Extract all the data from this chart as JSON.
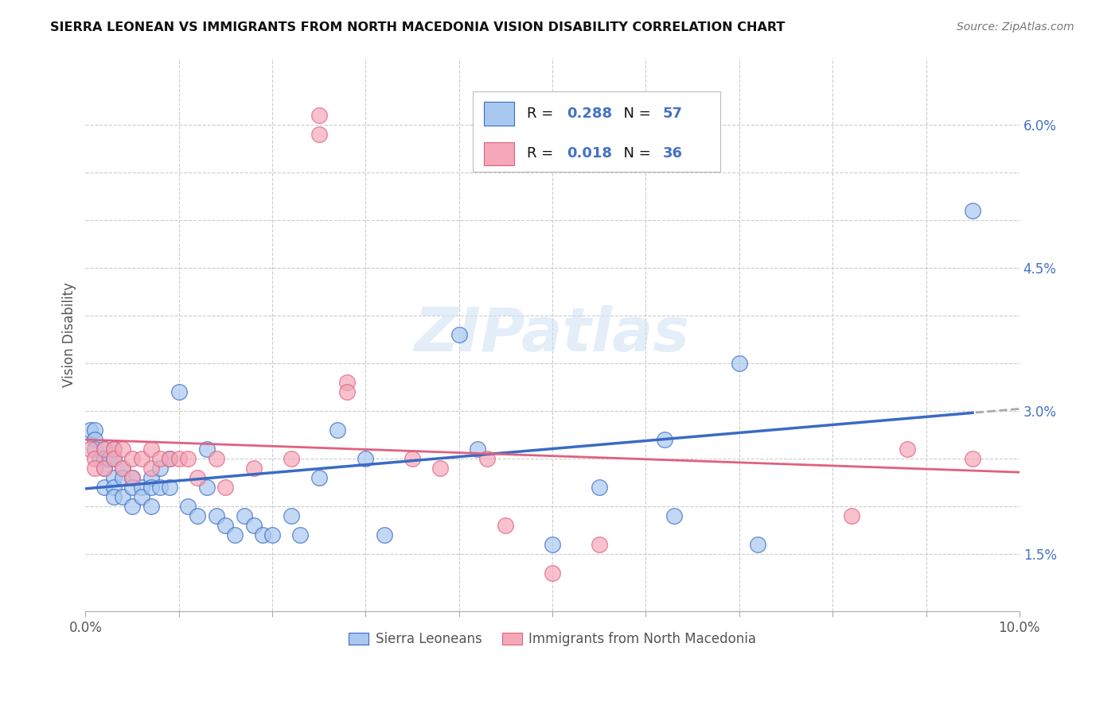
{
  "title": "SIERRA LEONEAN VS IMMIGRANTS FROM NORTH MACEDONIA VISION DISABILITY CORRELATION CHART",
  "source": "Source: ZipAtlas.com",
  "ylabel": "Vision Disability",
  "series1_label": "Sierra Leoneans",
  "series2_label": "Immigrants from North Macedonia",
  "R1": "0.288",
  "N1": "57",
  "R2": "0.018",
  "N2": "36",
  "color1": "#A8C8F0",
  "color2": "#F4A8B8",
  "trendline1_color": "#3A6BC4",
  "trendline2_color": "#E06080",
  "trendline_dash_color": "#AAAAAA",
  "background_color": "#FFFFFF",
  "grid_color": "#CCCCCC",
  "watermark": "ZIPatlas",
  "xlim": [
    0.0,
    0.1
  ],
  "ylim": [
    0.009,
    0.067
  ],
  "y_ticks_labeled": [
    0.015,
    0.03,
    0.045,
    0.06
  ],
  "y_tick_labels": [
    "1.5%",
    "3.0%",
    "4.5%",
    "6.0%"
  ],
  "y_grid_ticks": [
    0.015,
    0.02,
    0.025,
    0.03,
    0.035,
    0.04,
    0.045,
    0.05,
    0.055,
    0.06
  ],
  "x_grid_ticks": [
    0.01,
    0.02,
    0.03,
    0.04,
    0.05,
    0.06,
    0.07,
    0.08,
    0.09
  ],
  "series1_x": [
    0.0005,
    0.001,
    0.001,
    0.001,
    0.0015,
    0.002,
    0.002,
    0.002,
    0.002,
    0.0025,
    0.003,
    0.003,
    0.003,
    0.003,
    0.003,
    0.004,
    0.004,
    0.004,
    0.005,
    0.005,
    0.005,
    0.006,
    0.006,
    0.007,
    0.007,
    0.007,
    0.008,
    0.008,
    0.009,
    0.009,
    0.01,
    0.011,
    0.012,
    0.013,
    0.013,
    0.014,
    0.015,
    0.016,
    0.017,
    0.018,
    0.019,
    0.02,
    0.022,
    0.023,
    0.025,
    0.027,
    0.03,
    0.032,
    0.04,
    0.042,
    0.05,
    0.055,
    0.062,
    0.063,
    0.07,
    0.072,
    0.095
  ],
  "series1_y": [
    0.028,
    0.028,
    0.027,
    0.026,
    0.025,
    0.026,
    0.025,
    0.024,
    0.022,
    0.025,
    0.026,
    0.025,
    0.023,
    0.022,
    0.021,
    0.024,
    0.023,
    0.021,
    0.023,
    0.022,
    0.02,
    0.022,
    0.021,
    0.023,
    0.022,
    0.02,
    0.024,
    0.022,
    0.025,
    0.022,
    0.032,
    0.02,
    0.019,
    0.026,
    0.022,
    0.019,
    0.018,
    0.017,
    0.019,
    0.018,
    0.017,
    0.017,
    0.019,
    0.017,
    0.023,
    0.028,
    0.025,
    0.017,
    0.038,
    0.026,
    0.016,
    0.022,
    0.027,
    0.019,
    0.035,
    0.016,
    0.051
  ],
  "series2_x": [
    0.0005,
    0.001,
    0.001,
    0.002,
    0.002,
    0.003,
    0.003,
    0.004,
    0.004,
    0.005,
    0.005,
    0.006,
    0.007,
    0.007,
    0.008,
    0.009,
    0.01,
    0.011,
    0.012,
    0.014,
    0.015,
    0.018,
    0.022,
    0.025,
    0.025,
    0.028,
    0.028,
    0.035,
    0.038,
    0.043,
    0.045,
    0.05,
    0.055,
    0.082,
    0.088,
    0.095
  ],
  "series2_y": [
    0.026,
    0.025,
    0.024,
    0.026,
    0.024,
    0.026,
    0.025,
    0.026,
    0.024,
    0.025,
    0.023,
    0.025,
    0.026,
    0.024,
    0.025,
    0.025,
    0.025,
    0.025,
    0.023,
    0.025,
    0.022,
    0.024,
    0.025,
    0.061,
    0.059,
    0.033,
    0.032,
    0.025,
    0.024,
    0.025,
    0.018,
    0.013,
    0.016,
    0.019,
    0.026,
    0.025
  ]
}
